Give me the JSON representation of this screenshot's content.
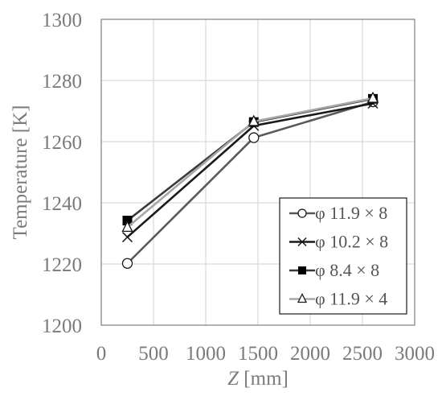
{
  "chart_data": {
    "type": "line",
    "title": "",
    "xlabel": {
      "italic": "Z",
      "rest": " [mm]"
    },
    "ylabel": "Temperature [K]",
    "xlim": [
      0,
      3000
    ],
    "ylim": [
      1200,
      1300
    ],
    "x_ticks": [
      0,
      500,
      1000,
      1500,
      2000,
      2500,
      3000
    ],
    "y_ticks": [
      1200,
      1220,
      1240,
      1260,
      1280,
      1300
    ],
    "grid": true,
    "legend_position": "bottom-right",
    "series": [
      {
        "name": "φ 11.9 × 8",
        "marker": "circle-open",
        "color": "#595959",
        "x": [
          250,
          1460,
          2600
        ],
        "y": [
          1220.2,
          1261.3,
          1273.0
        ]
      },
      {
        "name": "φ 10.2 × 8",
        "marker": "x",
        "color": "#1a1a1a",
        "x": [
          250,
          1460,
          2600
        ],
        "y": [
          1228.8,
          1265.2,
          1272.5
        ]
      },
      {
        "name": "φ 8.4 × 8",
        "marker": "square-filled",
        "color": "#3a3a3a",
        "x": [
          250,
          1460,
          2600
        ],
        "y": [
          1234.2,
          1266.4,
          1274.0
        ]
      },
      {
        "name": "φ 11.9 × 4",
        "marker": "triangle-open",
        "color": "#a6a6a6",
        "x": [
          250,
          1460,
          2600
        ],
        "y": [
          1232.0,
          1266.6,
          1274.2
        ]
      }
    ]
  }
}
